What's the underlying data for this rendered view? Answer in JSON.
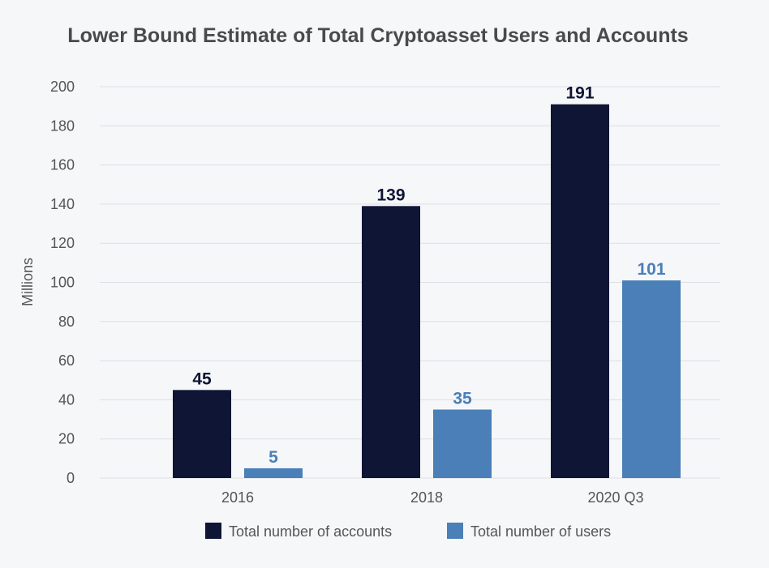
{
  "chart_data": {
    "type": "bar",
    "title": "Lower Bound Estimate of Total Cryptoasset Users and Accounts",
    "xlabel": "",
    "ylabel": "Millions",
    "categories": [
      "2016",
      "2018",
      "2020 Q3"
    ],
    "series": [
      {
        "name": "Total number of accounts",
        "values": [
          45,
          139,
          191
        ],
        "color": "#0f1535"
      },
      {
        "name": "Total number of users",
        "values": [
          5,
          35,
          101
        ],
        "color": "#4a7fb8"
      }
    ],
    "ylim": [
      0,
      200
    ],
    "yticks": [
      "0",
      "20",
      "40",
      "60",
      "80",
      "100",
      "120",
      "140",
      "160",
      "180",
      "200"
    ],
    "grid": true,
    "legend_position": "bottom-center",
    "data_labels": true
  }
}
